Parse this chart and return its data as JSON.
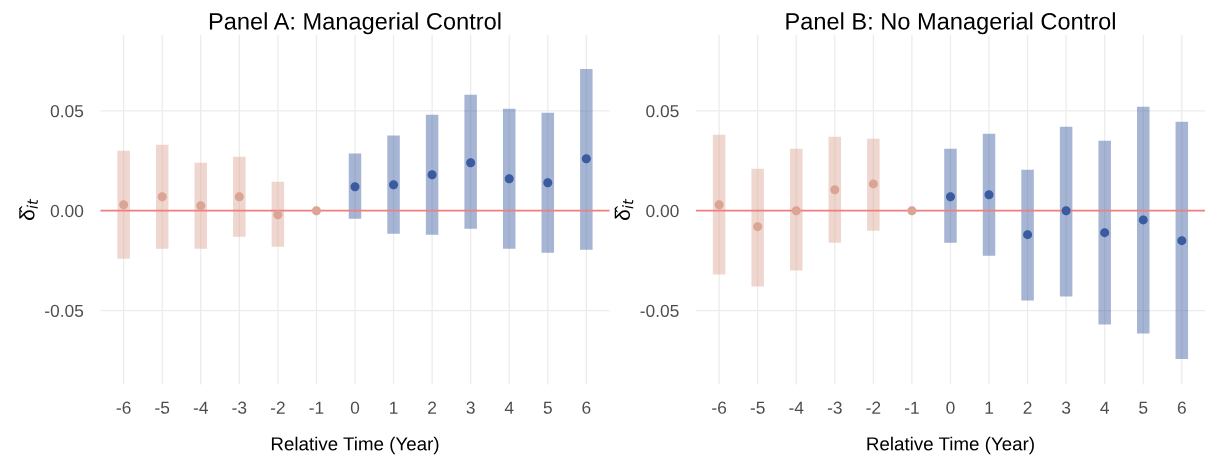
{
  "chart_data": [
    {
      "type": "scatter",
      "title": "Panel A: Managerial Control",
      "xlabel": "Relative Time (Year)",
      "ylabel": "δ̂$_{it}$",
      "categories": [
        "-6",
        "-5",
        "-4",
        "-3",
        "-2",
        "-1",
        "0",
        "1",
        "2",
        "3",
        "4",
        "5",
        "6"
      ],
      "ylim": [
        -0.087,
        0.088
      ],
      "yticks": [
        {
          "value": -0.05,
          "label": "-0.05"
        },
        {
          "value": 0,
          "label": "0.00"
        },
        {
          "value": 0.05,
          "label": "0.05"
        }
      ],
      "grid": true,
      "marker": "circle",
      "ref_lines": [
        {
          "axis": "y",
          "value": 0,
          "color": "#f08080"
        }
      ],
      "series": [
        {
          "color": "#dba595",
          "values": [
            0.003,
            0.007,
            0.0025,
            0.007,
            -0.002,
            0,
            null,
            null,
            null,
            null,
            null,
            null,
            null
          ],
          "errors": [
            [
              -0.024,
              0.03
            ],
            [
              -0.019,
              0.033
            ],
            [
              -0.019,
              0.024
            ],
            [
              -0.013,
              0.027
            ],
            [
              -0.018,
              0.0145
            ],
            null,
            null,
            null,
            null,
            null,
            null,
            null,
            null
          ]
        },
        {
          "color": "#3a5ba0",
          "values": [
            null,
            null,
            null,
            null,
            null,
            null,
            0.012,
            0.013,
            0.018,
            0.024,
            0.016,
            0.014,
            0.026
          ],
          "errors": [
            null,
            null,
            null,
            null,
            null,
            null,
            [
              -0.004,
              0.0286
            ],
            [
              -0.0116,
              0.0376
            ],
            [
              -0.012,
              0.048
            ],
            [
              -0.009,
              0.058
            ],
            [
              -0.019,
              0.051
            ],
            [
              -0.021,
              0.049
            ],
            [
              -0.0195,
              0.071
            ]
          ]
        }
      ]
    },
    {
      "type": "scatter",
      "title": "Panel B: No Managerial Control",
      "xlabel": "Relative Time (Year)",
      "ylabel": "δ̂$_{it}$",
      "categories": [
        "-6",
        "-5",
        "-4",
        "-3",
        "-2",
        "-1",
        "0",
        "1",
        "2",
        "3",
        "4",
        "5",
        "6"
      ],
      "ylim": [
        -0.087,
        0.088
      ],
      "yticks": [
        {
          "value": -0.05,
          "label": "-0.05"
        },
        {
          "value": 0,
          "label": "0.00"
        },
        {
          "value": 0.05,
          "label": "0.05"
        }
      ],
      "grid": true,
      "marker": "circle",
      "ref_lines": [
        {
          "axis": "y",
          "value": 0,
          "color": "#f08080"
        }
      ],
      "series": [
        {
          "color": "#dba595",
          "values": [
            0.003,
            -0.008,
            0.0,
            0.0105,
            0.0134,
            0,
            null,
            null,
            null,
            null,
            null,
            null,
            null
          ],
          "errors": [
            [
              -0.032,
              0.038
            ],
            [
              -0.038,
              0.021
            ],
            [
              -0.03,
              0.031
            ],
            [
              -0.016,
              0.037
            ],
            [
              -0.01,
              0.036
            ],
            null,
            null,
            null,
            null,
            null,
            null,
            null,
            null
          ]
        },
        {
          "color": "#3a5ba0",
          "values": [
            null,
            null,
            null,
            null,
            null,
            null,
            0.007,
            0.008,
            -0.012,
            0.0,
            -0.011,
            -0.0046,
            -0.015
          ],
          "errors": [
            null,
            null,
            null,
            null,
            null,
            null,
            [
              -0.016,
              0.031
            ],
            [
              -0.0226,
              0.0385
            ],
            [
              -0.045,
              0.0205
            ],
            [
              -0.043,
              0.042
            ],
            [
              -0.057,
              0.035
            ],
            [
              -0.0615,
              0.052
            ],
            [
              -0.0743,
              0.0445
            ]
          ]
        }
      ]
    }
  ]
}
